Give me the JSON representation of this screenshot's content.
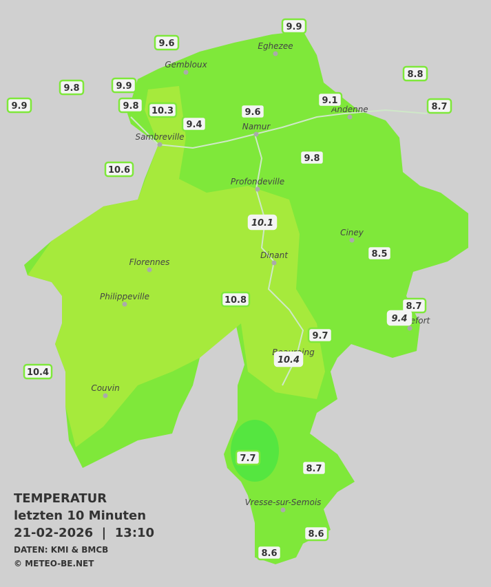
{
  "stations": [
    "9.9",
    "9.6",
    "9.8",
    "9.9",
    "9.9",
    "9.8",
    "10.3",
    "9.6",
    "9.4",
    "9.1",
    "8.8",
    "8.7",
    "9.8",
    "10.6",
    "10.1",
    "8.5",
    "10.8",
    "8.7",
    "9.4",
    "9.7",
    "10.4",
    "10.4",
    "7.7",
    "8.7",
    "8.6",
    "8.6"
  ],
  "cities": [
    "Eghezee",
    "Gembloux",
    "Andenne",
    "Namur",
    "Sambreville",
    "Profondeville",
    "Ciney",
    "Florennes",
    "Dinant",
    "Philippeville",
    "Rochefort",
    "Beauraing",
    "Couvin",
    "Vresse-sur-Semois"
  ],
  "legend": {
    "title": "TEMPERATUR",
    "subtitle": "letzten 10 Minuten",
    "timestamp": "21-02-2026  |  13:10",
    "source": "DATEN: KMI & BMCB",
    "copyright": "© METEO-BE.NET"
  }
}
